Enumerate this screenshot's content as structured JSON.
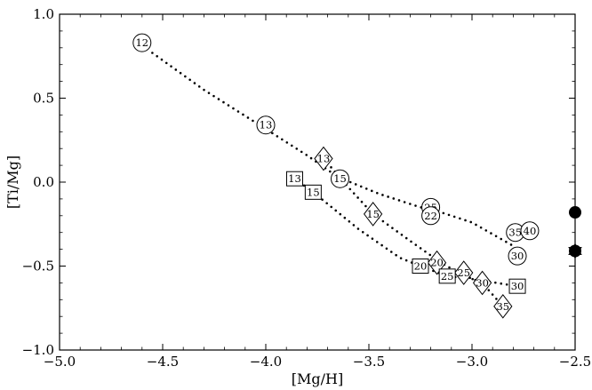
{
  "chart_data": {
    "type": "scatter",
    "xlabel": "[Mg/H]",
    "ylabel": "[Ti/Mg]",
    "xlim": [
      -5.0,
      -2.5
    ],
    "ylim": [
      -1.0,
      1.0
    ],
    "x_ticks": [
      -5.0,
      -4.5,
      -4.0,
      -3.5,
      -3.0,
      -2.5
    ],
    "x_tick_labels": [
      "−5.0",
      "−4.5",
      "−4.0",
      "−3.5",
      "−3.0",
      "−2.5"
    ],
    "y_ticks": [
      -1.0,
      -0.5,
      0.0,
      0.5,
      1.0
    ],
    "y_tick_labels": [
      "−1.0",
      "−0.5",
      "0.0",
      "0.5",
      "1.0"
    ],
    "grid": false,
    "series": [
      {
        "marker": "circle",
        "color": "#000000",
        "line": [
          [
            -4.55,
            0.77
          ],
          [
            -4.3,
            0.55
          ],
          [
            -4.03,
            0.34
          ],
          [
            -3.8,
            0.16
          ],
          [
            -3.65,
            0.03
          ],
          [
            -3.45,
            -0.07
          ],
          [
            -3.25,
            -0.15
          ],
          [
            -3.2,
            -0.16
          ],
          [
            -3.0,
            -0.24
          ],
          [
            -2.8,
            -0.38
          ]
        ],
        "points": [
          {
            "label": "12",
            "x": -4.6,
            "y": 0.83
          },
          {
            "label": "13",
            "x": -4.0,
            "y": 0.34
          },
          {
            "label": "15",
            "x": -3.64,
            "y": 0.02
          },
          {
            "label": "25",
            "x": -3.2,
            "y": -0.15
          },
          {
            "label": "22",
            "x": -3.2,
            "y": -0.2
          },
          {
            "label": "35",
            "x": -2.79,
            "y": -0.3
          },
          {
            "label": "40",
            "x": -2.72,
            "y": -0.29
          },
          {
            "label": "30",
            "x": -2.78,
            "y": -0.44
          }
        ]
      },
      {
        "marker": "diamond",
        "color": "#000000",
        "line": [
          [
            -3.72,
            0.14
          ],
          [
            -3.6,
            -0.03
          ],
          [
            -3.48,
            -0.19
          ],
          [
            -3.3,
            -0.35
          ],
          [
            -3.15,
            -0.48
          ],
          [
            -3.05,
            -0.55
          ],
          [
            -2.95,
            -0.6
          ],
          [
            -2.85,
            -0.74
          ]
        ],
        "points": [
          {
            "label": "13",
            "x": -3.72,
            "y": 0.14
          },
          {
            "label": "15",
            "x": -3.48,
            "y": -0.19
          },
          {
            "label": "20",
            "x": -3.17,
            "y": -0.48
          },
          {
            "label": "25",
            "x": -3.04,
            "y": -0.54
          },
          {
            "label": "30",
            "x": -2.95,
            "y": -0.6
          },
          {
            "label": "35",
            "x": -2.85,
            "y": -0.74
          }
        ]
      },
      {
        "marker": "square",
        "color": "#000000",
        "line": [
          [
            -3.86,
            0.02
          ],
          [
            -3.77,
            -0.06
          ],
          [
            -3.55,
            -0.28
          ],
          [
            -3.35,
            -0.45
          ],
          [
            -3.25,
            -0.5
          ],
          [
            -3.12,
            -0.56
          ],
          [
            -2.98,
            -0.58
          ],
          [
            -2.78,
            -0.62
          ]
        ],
        "points": [
          {
            "label": "13",
            "x": -3.86,
            "y": 0.02
          },
          {
            "label": "15",
            "x": -3.77,
            "y": -0.06
          },
          {
            "label": "20",
            "x": -3.25,
            "y": -0.5
          },
          {
            "label": "25",
            "x": -3.12,
            "y": -0.56
          },
          {
            "label": "30",
            "x": -2.78,
            "y": -0.62
          }
        ]
      }
    ],
    "observed_points": [
      {
        "marker": "filled-circle",
        "x": -2.5,
        "y": -0.18
      },
      {
        "marker": "filled-circle",
        "x": -2.5,
        "y": -0.41
      },
      {
        "marker": "filled-star",
        "x": -2.5,
        "y": -0.41
      }
    ]
  }
}
